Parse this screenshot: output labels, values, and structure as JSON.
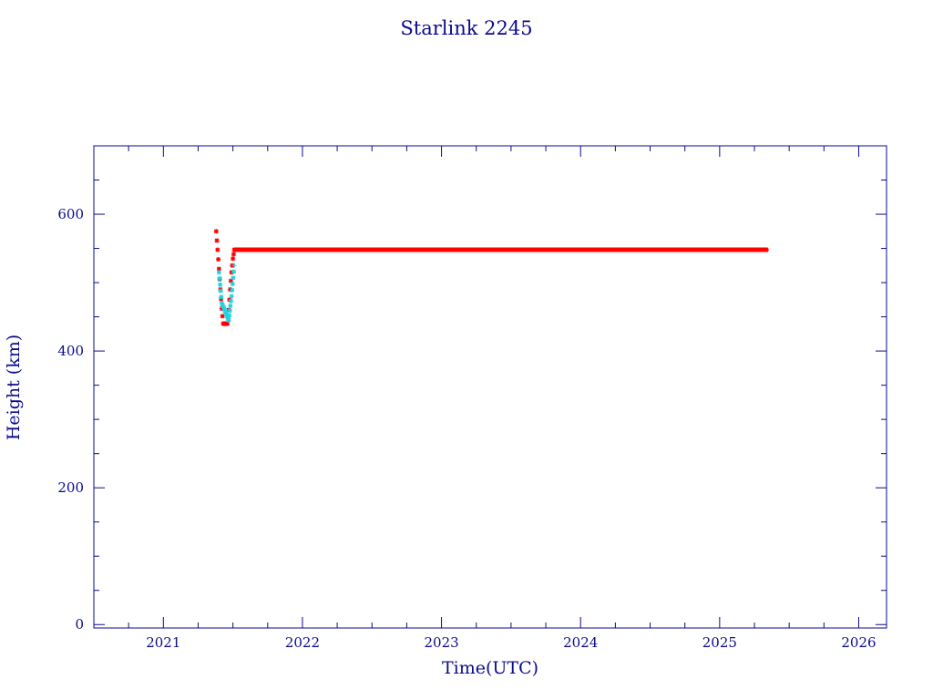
{
  "chart_data": {
    "type": "scatter",
    "title": "Starlink 2245",
    "xlabel": "Time(UTC)",
    "ylabel": "Height (km)",
    "xlim": [
      2020.5,
      2026.2
    ],
    "ylim": [
      -5,
      700
    ],
    "x_ticks": [
      2021,
      2022,
      2023,
      2024,
      2025,
      2026
    ],
    "y_ticks": [
      0,
      200,
      400,
      600
    ],
    "grid": false,
    "legend": "none",
    "colors": {
      "axis": "#0a0a8c",
      "primary": "#ff0000",
      "secondary": "#22d3e0"
    },
    "series": [
      {
        "color": "#ff0000",
        "x": [
          2021.38,
          2021.39,
          2021.4,
          2021.41,
          2021.42,
          2021.43,
          2021.44,
          2021.45,
          2021.46,
          2021.47,
          2021.48,
          2021.49,
          2021.5,
          2021.51,
          2021.52,
          2021.54,
          2021.6,
          2021.8,
          2022.0,
          2022.5,
          2023.0,
          2023.5,
          2024.0,
          2024.5,
          2025.0,
          2025.34
        ],
        "y": [
          575,
          548,
          520,
          490,
          462,
          440,
          440,
          440,
          440,
          460,
          490,
          515,
          535,
          548,
          548,
          548,
          548,
          548,
          548,
          548,
          548,
          548,
          548,
          548,
          548,
          548
        ]
      },
      {
        "color": "#22d3e0",
        "x": [
          2021.4,
          2021.42,
          2021.47,
          2021.49,
          2021.51
        ],
        "y": [
          515,
          470,
          445,
          480,
          525
        ]
      }
    ]
  }
}
